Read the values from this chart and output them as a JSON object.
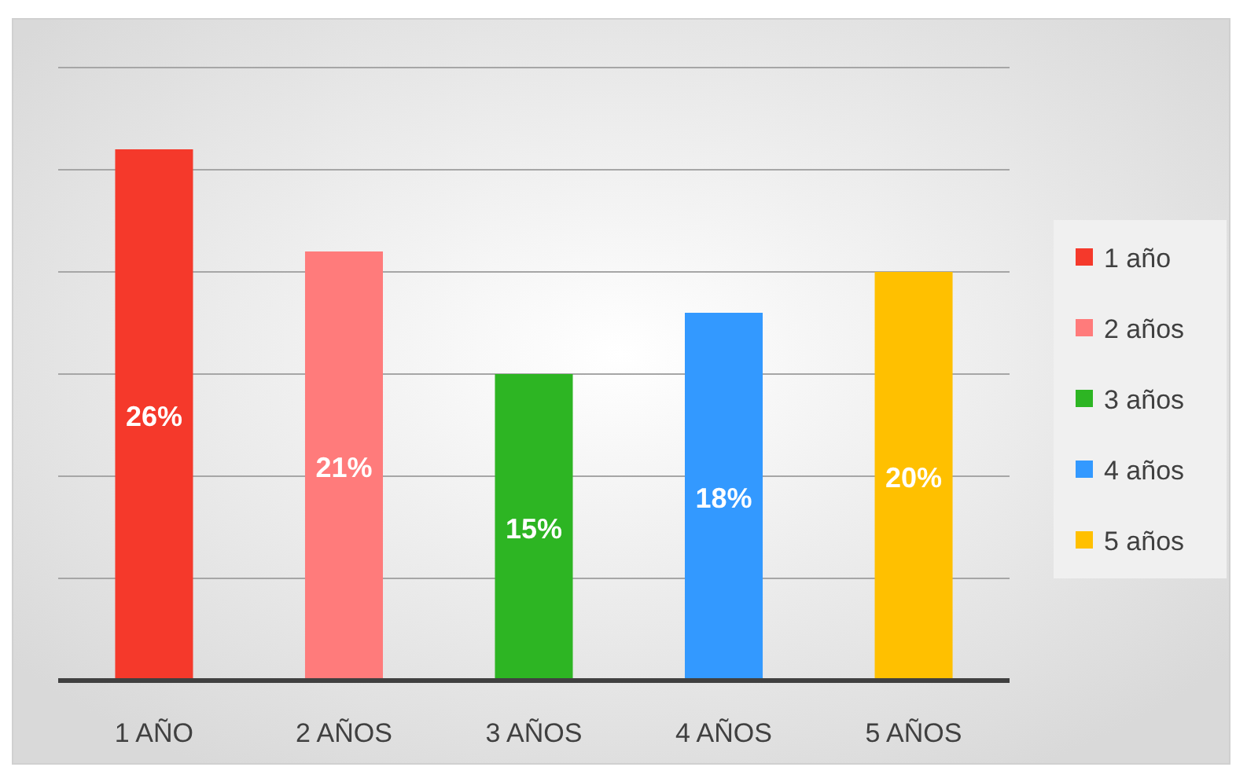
{
  "chart_data": {
    "type": "bar",
    "categories": [
      "1 AÑO",
      "2 AÑOS",
      "3 AÑOS",
      "4 AÑOS",
      "5 AÑOS"
    ],
    "series": [
      {
        "name": "1 año",
        "color": "#f5392b",
        "values": [
          26,
          null,
          null,
          null,
          null
        ],
        "value_labels": [
          "26%",
          null,
          null,
          null,
          null
        ]
      },
      {
        "name": "2 años",
        "color": "#ff7b7b",
        "values": [
          null,
          21,
          null,
          null,
          null
        ],
        "value_labels": [
          null,
          "21%",
          null,
          null,
          null
        ]
      },
      {
        "name": "3 años",
        "color": "#2db523",
        "values": [
          null,
          null,
          15,
          null,
          null
        ],
        "value_labels": [
          null,
          null,
          "15%",
          null,
          null
        ]
      },
      {
        "name": "4 años",
        "color": "#3399ff",
        "values": [
          null,
          null,
          null,
          18,
          null
        ],
        "value_labels": [
          null,
          null,
          null,
          "18%",
          null
        ]
      },
      {
        "name": "5 años",
        "color": "#ffc000",
        "values": [
          null,
          null,
          null,
          null,
          20
        ],
        "value_labels": [
          null,
          null,
          null,
          null,
          "20%"
        ]
      }
    ],
    "ylim": [
      0,
      30
    ],
    "yticks": [
      {
        "value": 0,
        "label": null
      },
      {
        "value": 5,
        "label": null
      },
      {
        "value": 10,
        "label": null
      },
      {
        "value": 15,
        "label": null
      },
      {
        "value": 20,
        "label": null
      },
      {
        "value": 25,
        "label": null
      },
      {
        "value": 30,
        "label": null
      }
    ],
    "grid": "y",
    "tick_labels": "x",
    "legend": "right"
  }
}
